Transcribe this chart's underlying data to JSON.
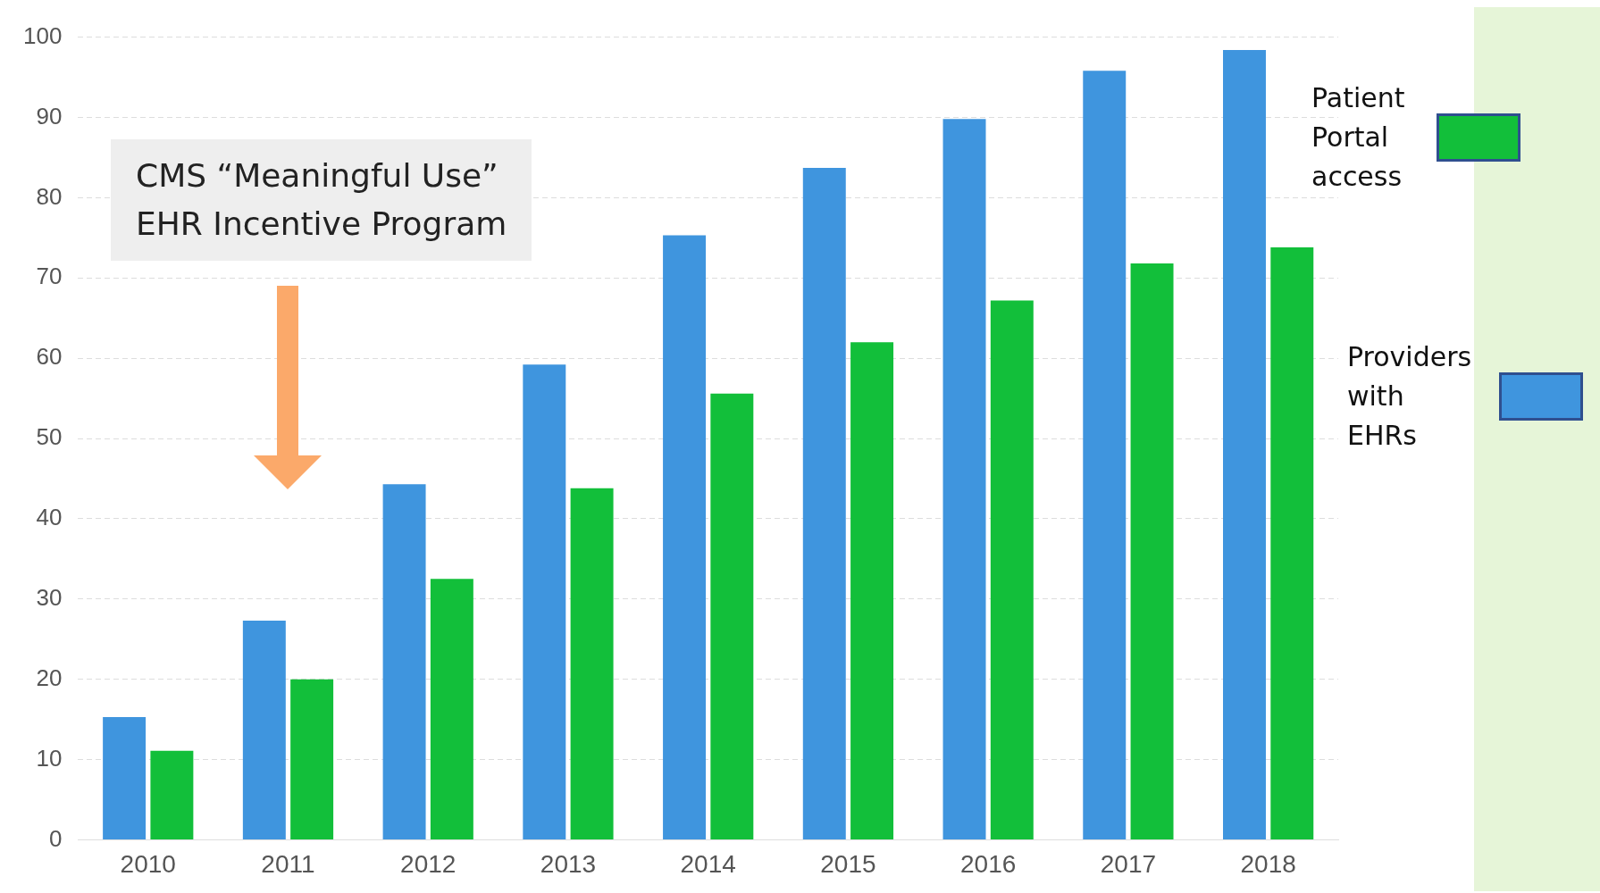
{
  "chart_data": {
    "type": "bar",
    "categories": [
      "2010",
      "2011",
      "2012",
      "2013",
      "2014",
      "2015",
      "2016",
      "2017",
      "2018"
    ],
    "series": [
      {
        "name": "Providers with EHRs",
        "color": "#3f95de",
        "values": [
          15.3,
          27.3,
          44.3,
          59.2,
          75.3,
          83.7,
          89.8,
          95.8,
          98.4
        ]
      },
      {
        "name": "Patient Portal access",
        "color": "#12bf3a",
        "values": [
          11.1,
          20,
          32.5,
          43.8,
          55.6,
          62,
          67.2,
          71.8,
          73.8
        ]
      }
    ],
    "ylim": [
      0,
      100
    ],
    "yticks": [
      0,
      10,
      20,
      30,
      40,
      50,
      60,
      70,
      80,
      90,
      100
    ],
    "grid": "y",
    "legend": "right",
    "annotations": [
      "CMS “Meaningful Use”\nEHR Incentive Program"
    ]
  }
}
